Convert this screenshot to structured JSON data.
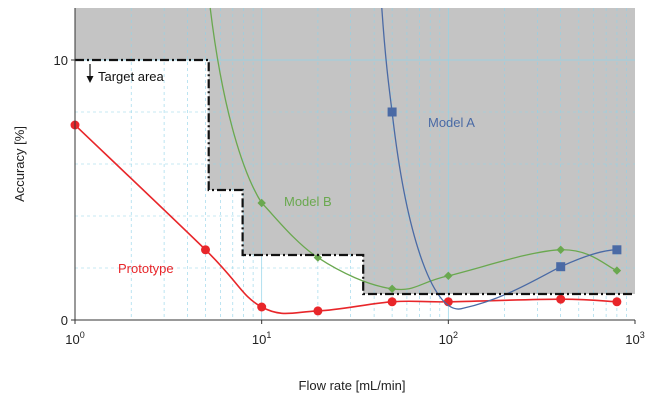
{
  "chart_data": {
    "type": "line",
    "xlabel": "Flow rate [mL/min]",
    "ylabel": "Accuracy [%]",
    "x_scale": "log",
    "xlim": [
      1,
      1000
    ],
    "ylim": [
      0,
      12
    ],
    "x_ticks": [
      {
        "value": 1,
        "base": "10",
        "exp": "0"
      },
      {
        "value": 10,
        "base": "10",
        "exp": "1"
      },
      {
        "value": 100,
        "base": "10",
        "exp": "2"
      },
      {
        "value": 1000,
        "base": "10",
        "exp": "3"
      }
    ],
    "y_ticks": [
      {
        "value": 0,
        "label": "0"
      },
      {
        "value": 10,
        "label": "10"
      }
    ],
    "grid": true,
    "target_area": {
      "label": "Target area",
      "boundary": [
        [
          1,
          10
        ],
        [
          5.2,
          10
        ],
        [
          5.2,
          5
        ],
        [
          7.9,
          5
        ],
        [
          7.9,
          2.5
        ],
        [
          35,
          2.5
        ],
        [
          35,
          1
        ],
        [
          1000,
          1
        ]
      ]
    },
    "series": [
      {
        "name": "Prototype",
        "color": "#e8262a",
        "marker": "circle",
        "x": [
          1,
          5,
          10,
          20,
          50,
          100,
          400,
          800
        ],
        "y": [
          7.5,
          2.7,
          0.5,
          0.35,
          0.7,
          0.7,
          0.8,
          0.7
        ]
      },
      {
        "name": "Model B",
        "color": "#6aa84f",
        "marker": "diamond",
        "x": [
          10,
          20,
          50,
          100,
          400,
          800
        ],
        "y": [
          4.5,
          2.4,
          1.2,
          1.7,
          2.7,
          1.9
        ]
      },
      {
        "name": "Model A",
        "color": "#4a6aa5",
        "marker": "square",
        "x": [
          50,
          400,
          800
        ],
        "y": [
          8,
          2.05,
          2.7
        ]
      }
    ]
  }
}
